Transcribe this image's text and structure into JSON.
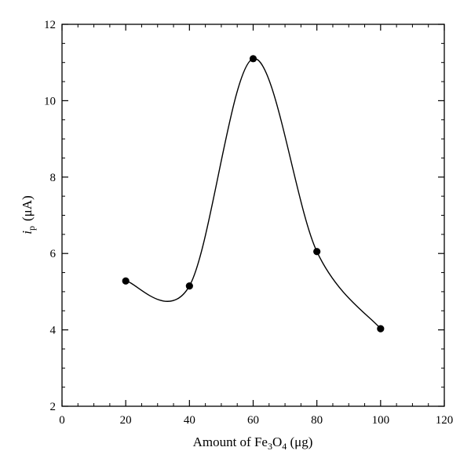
{
  "chart_data": {
    "type": "scatter",
    "title": "",
    "xlabel": {
      "prefix": "Amount of Fe",
      "sub1": "3",
      "mid": "O",
      "sub2": "4",
      "suffix": " (μg)"
    },
    "ylabel": {
      "var": "i",
      "sub": "p",
      "unit": "(μA)"
    },
    "xlim": [
      0,
      120
    ],
    "ylim": [
      2,
      12
    ],
    "xticks": [
      0,
      20,
      40,
      60,
      80,
      100,
      120
    ],
    "yticks": [
      2,
      4,
      6,
      8,
      10,
      12
    ],
    "x_minor_step": 5,
    "y_minor_step": 0.5,
    "grid": false,
    "smooth_line": true,
    "series": [
      {
        "x": [
          20,
          40,
          60,
          80,
          100
        ],
        "y": [
          5.28,
          5.15,
          11.1,
          6.05,
          4.03
        ],
        "color": "#000000"
      }
    ]
  }
}
